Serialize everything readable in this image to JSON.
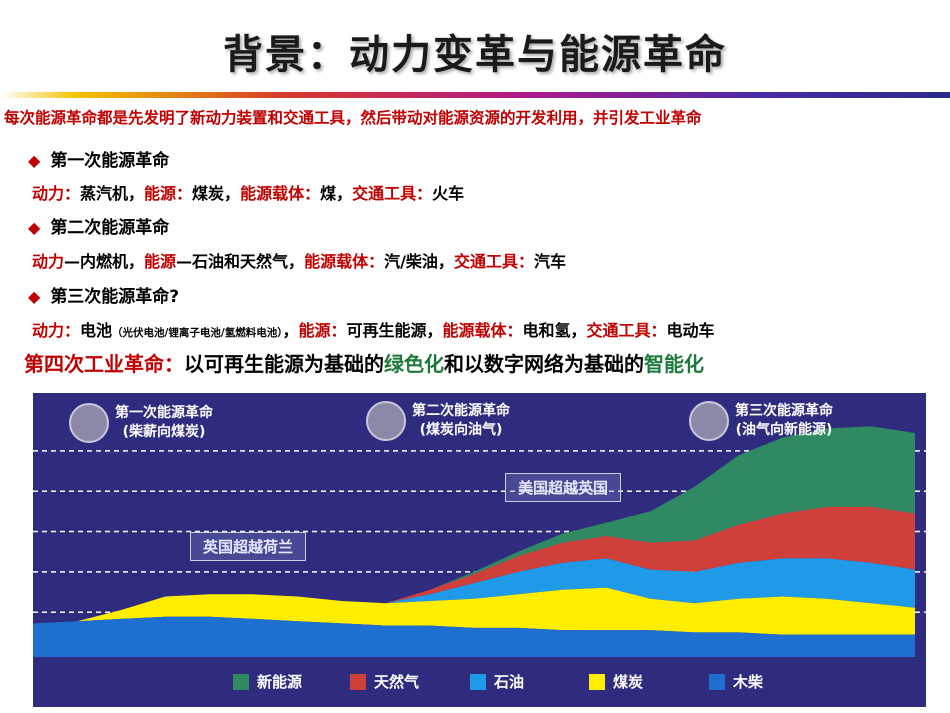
{
  "title": "背景：动力变革与能源革命",
  "intro": "每次能源革命都是先发明了新动力装置和交通工具，然后带动对能源资源的开发利用，并引发工业革命",
  "revolutions": [
    {
      "heading": "第一次能源革命",
      "k1": "动力：",
      "v1": "蒸汽机，",
      "k2": "能源：",
      "v2": "煤炭，",
      "k3": "能源载体：",
      "v3": "煤，",
      "k4": "交通工具：",
      "v4": "火车"
    },
    {
      "heading": "第二次能源革命",
      "k1": "动力",
      "v1": "—内燃机，",
      "k2": "能源",
      "v2": "—石油和天然气，",
      "k3": "能源载体：",
      "v3": "汽/柴油，",
      "k4": "交通工具：",
      "v4": "汽车"
    },
    {
      "heading": "第三次能源革命?",
      "k1": "动力：",
      "v1": "电池",
      "v1_small": "（光伏电池/锂离子电池/氢燃料电池）",
      "v1_tail": "，",
      "k2": "能源：",
      "v2": "可再生能源，",
      "k3": "能源载体：",
      "v3": "电和氢，",
      "k4": "交通工具：",
      "v4": "电动车"
    }
  ],
  "fourth": {
    "p1": "第四次工业革命：",
    "p2": "以可再生能源为基础的",
    "p3": "绿色化",
    "p4": "和以数字网络为基础的",
    "p5": "智能化"
  },
  "chart_data": {
    "type": "area",
    "stacked": true,
    "grid": true,
    "x": [
      0,
      1,
      2,
      3,
      4,
      5,
      6,
      7,
      8,
      9,
      10,
      11,
      12,
      13,
      14,
      15,
      16,
      17,
      18,
      19,
      20
    ],
    "series": [
      {
        "name": "木柴",
        "color": "#1f6fd0",
        "values": [
          1.5,
          1.6,
          1.7,
          1.8,
          1.8,
          1.7,
          1.6,
          1.5,
          1.4,
          1.4,
          1.3,
          1.3,
          1.2,
          1.2,
          1.2,
          1.1,
          1.1,
          1.0,
          1.0,
          1.0,
          1.0
        ]
      },
      {
        "name": "煤炭",
        "color": "#ffee00",
        "values": [
          0,
          0,
          0.4,
          0.9,
          1.0,
          1.1,
          1.1,
          1.0,
          1.0,
          1.1,
          1.3,
          1.5,
          1.8,
          1.9,
          1.4,
          1.3,
          1.5,
          1.7,
          1.6,
          1.4,
          1.2
        ]
      },
      {
        "name": "石油",
        "color": "#1f9ae8",
        "values": [
          0,
          0,
          0,
          0,
          0,
          0,
          0,
          0,
          0,
          0.3,
          0.7,
          1.0,
          1.2,
          1.3,
          1.3,
          1.4,
          1.6,
          1.7,
          1.8,
          1.8,
          1.7
        ]
      },
      {
        "name": "天然气",
        "color": "#d0403a",
        "values": [
          0,
          0,
          0,
          0,
          0,
          0,
          0,
          0,
          0,
          0.2,
          0.4,
          0.7,
          0.9,
          1.0,
          1.2,
          1.4,
          1.7,
          2.0,
          2.3,
          2.5,
          2.5
        ]
      },
      {
        "name": "新能源",
        "color": "#2f8a63",
        "values": [
          0,
          0,
          0,
          0,
          0,
          0,
          0,
          0,
          0,
          0,
          0.1,
          0.2,
          0.4,
          0.6,
          1.4,
          2.4,
          3.1,
          3.4,
          3.5,
          3.6,
          3.6
        ]
      }
    ],
    "ylim": [
      0,
      10
    ],
    "eras": [
      {
        "line1": "第一次能源革命",
        "line2": "(柴薪向煤炭)"
      },
      {
        "line1": "第二次能源革命",
        "line2": "(煤炭向油气)"
      },
      {
        "line1": "第三次能源革命",
        "line2": "(油气向新能源)"
      }
    ],
    "annotations": [
      "英国超越荷兰",
      "美国超越英国"
    ],
    "legend": [
      "新能源",
      "天然气",
      "石油",
      "煤炭",
      "木柴"
    ],
    "legend_colors": [
      "#2f8a63",
      "#d0403a",
      "#1f9ae8",
      "#ffee00",
      "#1f6fd0"
    ]
  }
}
